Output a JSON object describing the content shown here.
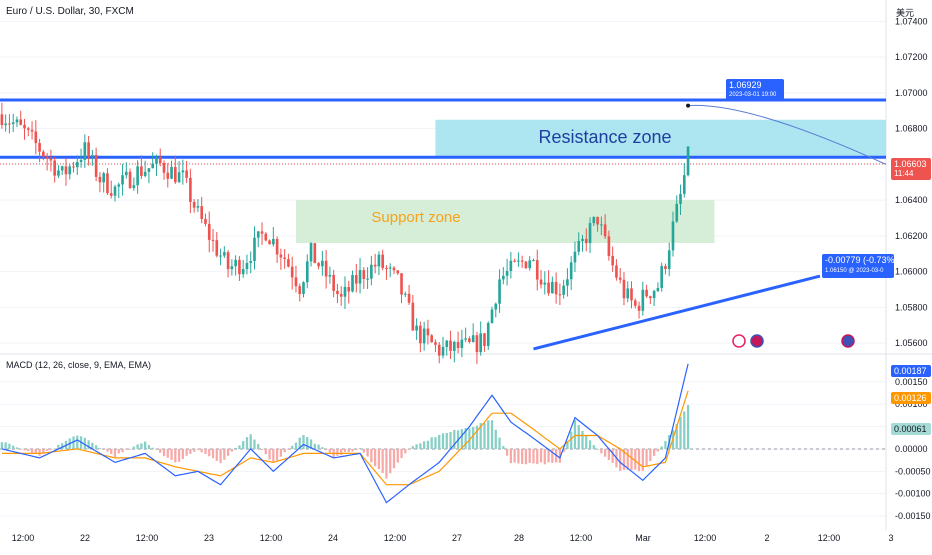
{
  "header": {
    "symbol": "Euro / U.S. Dollar, 30, FXCM",
    "currency_unit": "美元"
  },
  "indicator": {
    "label": "MACD (12, 26, close, 9, EMA, EMA)"
  },
  "annotations": {
    "resistance_zone": "Resistance zone",
    "support_zone": "Support zone",
    "arc_label_value": "1.06929",
    "arc_label_date": "2023-03-01 19:00",
    "trend_label_top": "-0.00779 (-0.73%)",
    "trend_label_bottom": "1.06150 @ 2023-03-0"
  },
  "price_badge": {
    "value": "1.06603",
    "countdown": "11:44"
  },
  "macd_badges": {
    "macd": "0.00187",
    "signal": "0.00126",
    "hist": "0.00061"
  },
  "colors": {
    "up": "#26a69a",
    "down": "#ef5350",
    "blue_line": "#2962ff",
    "resistance_fill": "#9fe1ee",
    "support_fill": "#d2ecd3",
    "support_text": "#f7a21b",
    "resistance_text": "#1e3fa0",
    "macd_line": "#2962ff",
    "signal_line": "#ff9800"
  },
  "chart_data": [
    {
      "type": "candlestick",
      "title": "Euro / U.S. Dollar, 30, FXCM",
      "ylim": [
        1.0555,
        1.0752
      ],
      "y_ticks": [
        "1.07400",
        "1.07200",
        "1.07000",
        "1.06800",
        "1.06600",
        "1.06400",
        "1.06200",
        "1.06000",
        "1.05800",
        "1.05600"
      ],
      "x_ticks": [
        "12:00",
        "22",
        "12:00",
        "23",
        "12:00",
        "24",
        "12:00",
        "27",
        "28",
        "12:00",
        "Mar",
        "12:00",
        "2",
        "12:00",
        "3"
      ],
      "levels": {
        "upper_line": 1.0696,
        "lower_line": 1.0664,
        "resistance_zone": [
          1.0664,
          1.0685
        ],
        "support_zone": [
          1.0616,
          1.064
        ]
      },
      "close_path": [
        [
          0,
          1.0688
        ],
        [
          6,
          1.0678
        ],
        [
          12,
          1.0664
        ],
        [
          16,
          1.0654
        ],
        [
          22,
          1.0668
        ],
        [
          26,
          1.0652
        ],
        [
          30,
          1.0646
        ],
        [
          36,
          1.0656
        ],
        [
          42,
          1.066
        ],
        [
          48,
          1.0652
        ],
        [
          52,
          1.0632
        ],
        [
          56,
          1.0616
        ],
        [
          60,
          1.0602
        ],
        [
          64,
          1.0605
        ],
        [
          70,
          1.0623
        ],
        [
          75,
          1.0608
        ],
        [
          79,
          1.0592
        ],
        [
          82,
          1.061
        ],
        [
          86,
          1.0598
        ],
        [
          90,
          1.0584
        ],
        [
          95,
          1.0598
        ],
        [
          100,
          1.0605
        ],
        [
          105,
          1.0594
        ],
        [
          110,
          1.0566
        ],
        [
          116,
          1.0556
        ],
        [
          124,
          1.0558
        ],
        [
          128,
          1.0562
        ],
        [
          132,
          1.0596
        ],
        [
          136,
          1.0602
        ],
        [
          140,
          1.0608
        ],
        [
          144,
          1.0595
        ],
        [
          148,
          1.059
        ],
        [
          151,
          1.0603
        ],
        [
          155,
          1.062
        ],
        [
          158,
          1.063
        ],
        [
          161,
          1.0608
        ],
        [
          165,
          1.0588
        ],
        [
          168,
          1.058
        ],
        [
          171,
          1.0588
        ],
        [
          174,
          1.0592
        ],
        [
          176,
          1.0606
        ],
        [
          178,
          1.0625
        ],
        [
          180,
          1.0642
        ],
        [
          182,
          1.0664
        ]
      ],
      "trend_line": {
        "start": [
          1.05567,
          141
        ],
        "end": [
          1.05975,
          217
        ]
      },
      "projection_arc": {
        "from": [
          1.06929,
          182
        ],
        "to": [
          1.066,
          217
        ]
      }
    },
    {
      "type": "line",
      "title": "MACD (12, 26, close, 9, EMA, EMA)",
      "ylim": [
        -0.0017,
        0.0021
      ],
      "y_ticks": [
        "0.00150",
        "0.00100",
        "0.00050",
        "0.00000",
        "-0.00050",
        "-0.00100",
        "-0.00150"
      ],
      "macd_path": [
        [
          0,
          0.0
        ],
        [
          10,
          -0.0002
        ],
        [
          20,
          0.0002
        ],
        [
          30,
          -0.0003
        ],
        [
          38,
          -0.0001
        ],
        [
          46,
          -0.0006
        ],
        [
          52,
          -0.0005
        ],
        [
          58,
          -0.0008
        ],
        [
          66,
          0.0
        ],
        [
          72,
          -0.0005
        ],
        [
          80,
          0.0001
        ],
        [
          88,
          -0.0002
        ],
        [
          95,
          -0.0001
        ],
        [
          102,
          -0.0012
        ],
        [
          108,
          -0.0008
        ],
        [
          116,
          -0.0003
        ],
        [
          124,
          0.0005
        ],
        [
          130,
          0.0012
        ],
        [
          135,
          0.0006
        ],
        [
          140,
          0.0003
        ],
        [
          148,
          -0.0002
        ],
        [
          152,
          0.0007
        ],
        [
          158,
          0.0003
        ],
        [
          164,
          -0.0003
        ],
        [
          170,
          -0.0007
        ],
        [
          176,
          -0.0002
        ],
        [
          182,
          0.0019
        ]
      ],
      "signal_path": [
        [
          0,
          -0.0001
        ],
        [
          10,
          -0.0001
        ],
        [
          20,
          0.0
        ],
        [
          30,
          -0.0002
        ],
        [
          38,
          -0.0002
        ],
        [
          46,
          -0.0004
        ],
        [
          52,
          -0.0005
        ],
        [
          58,
          -0.0006
        ],
        [
          66,
          -0.0002
        ],
        [
          72,
          -0.0003
        ],
        [
          80,
          -0.0001
        ],
        [
          88,
          -0.0001
        ],
        [
          95,
          -0.0001
        ],
        [
          102,
          -0.0008
        ],
        [
          108,
          -0.0008
        ],
        [
          116,
          -0.0005
        ],
        [
          124,
          0.0002
        ],
        [
          130,
          0.0008
        ],
        [
          135,
          0.0008
        ],
        [
          140,
          0.0005
        ],
        [
          148,
          0.0
        ],
        [
          152,
          0.0003
        ],
        [
          158,
          0.0003
        ],
        [
          164,
          0.0
        ],
        [
          170,
          -0.0004
        ],
        [
          176,
          -0.0003
        ],
        [
          182,
          0.0013
        ]
      ],
      "histogram_last": 0.00061
    }
  ]
}
